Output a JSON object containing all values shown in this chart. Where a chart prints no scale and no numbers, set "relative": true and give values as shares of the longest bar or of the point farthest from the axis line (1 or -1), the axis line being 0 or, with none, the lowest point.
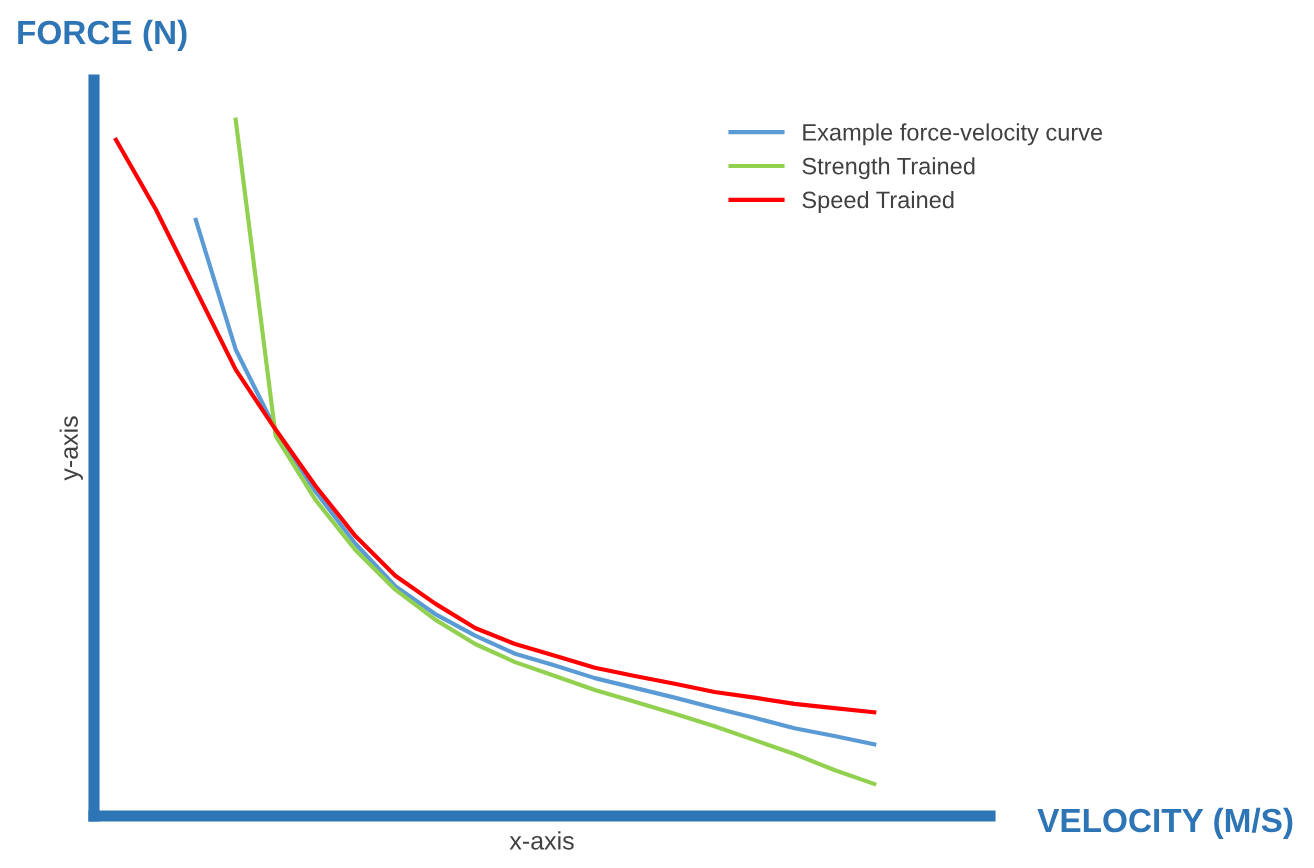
{
  "chart_data": {
    "type": "line",
    "relative": true,
    "title": "FORCE (N)",
    "xlabel": "x-axis",
    "ylabel": "y-axis",
    "annotations": [
      "VELOCITY (M/S)"
    ],
    "categories": [
      null,
      null,
      null,
      null,
      null,
      null,
      null,
      null,
      null,
      null,
      null,
      null,
      null,
      null,
      null,
      null,
      null,
      null,
      null,
      null
    ],
    "series": [
      {
        "name": "Example force-velocity curve",
        "color": "#5b9bd5",
        "values": [
          null,
          null,
          0.856,
          0.67,
          0.555,
          0.466,
          0.391,
          0.33,
          0.29,
          0.259,
          0.233,
          0.216,
          0.198,
          0.184,
          0.17,
          0.155,
          0.141,
          0.126,
          0.115,
          0.103
        ]
      },
      {
        "name": "Strength Trained",
        "color": "#92d050",
        "values": [
          null,
          null,
          null,
          1.0,
          0.546,
          0.454,
          0.382,
          0.325,
          0.282,
          0.247,
          0.221,
          0.201,
          0.181,
          0.164,
          0.147,
          0.129,
          0.109,
          0.089,
          0.066,
          0.046
        ]
      },
      {
        "name": "Speed Trained",
        "color": "#ff0000",
        "values": [
          0.971,
          0.871,
          0.756,
          0.641,
          0.555,
          0.474,
          0.402,
          0.345,
          0.305,
          0.27,
          0.247,
          0.23,
          0.213,
          0.201,
          0.19,
          0.178,
          0.17,
          0.161,
          0.155,
          0.149
        ]
      }
    ],
    "legend": "top right",
    "grid": false,
    "marker": "none",
    "line_style": "solid"
  }
}
